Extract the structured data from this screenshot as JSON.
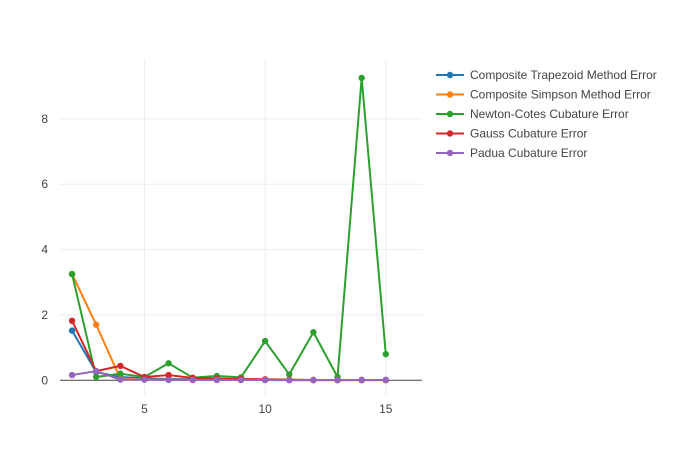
{
  "chart_data": {
    "type": "line",
    "title": "",
    "xlabel": "",
    "ylabel": "",
    "xlim": [
      1.5,
      16.5
    ],
    "ylim": [
      -0.45,
      9.8
    ],
    "x_ticks": [
      5,
      10,
      15
    ],
    "y_ticks": [
      0,
      2,
      4,
      6,
      8
    ],
    "grid": true,
    "legend_position": "top-right",
    "series": [
      {
        "name": "Composite Trapezoid Method Error",
        "color": "#1f77b4",
        "x": [
          2,
          3,
          4,
          5,
          6,
          7,
          8,
          9,
          10,
          11,
          12,
          13,
          14,
          15
        ],
        "y": [
          1.52,
          0.25,
          0.1,
          0.06,
          0.04,
          0.03,
          0.02,
          0.02,
          0.01,
          0.01,
          0.01,
          0.01,
          0.01,
          0.01
        ]
      },
      {
        "name": "Composite Simpson Method Error",
        "color": "#ff7f0e",
        "x": [
          2,
          3,
          4,
          5,
          6,
          7,
          8,
          9,
          10,
          11,
          12,
          13,
          14,
          15
        ],
        "y": [
          3.25,
          1.7,
          0.05,
          0.03,
          0.02,
          0.01,
          0.01,
          0.01,
          0.01,
          0.0,
          0.0,
          0.0,
          0.0,
          0.0
        ]
      },
      {
        "name": "Newton-Cotes Cubature Error",
        "color": "#2ca02c",
        "x": [
          2,
          3,
          4,
          5,
          6,
          7,
          8,
          9,
          10,
          11,
          12,
          13,
          14,
          15
        ],
        "y": [
          3.25,
          0.1,
          0.2,
          0.1,
          0.52,
          0.08,
          0.13,
          0.09,
          1.2,
          0.18,
          1.47,
          0.1,
          9.25,
          0.8
        ]
      },
      {
        "name": "Gauss Cubature Error",
        "color": "#d62728",
        "x": [
          2,
          3,
          4,
          5,
          6,
          7,
          8,
          9,
          10,
          11,
          12,
          13,
          14,
          15
        ],
        "y": [
          1.82,
          0.28,
          0.44,
          0.1,
          0.16,
          0.07,
          0.05,
          0.04,
          0.03,
          0.02,
          0.01,
          0.01,
          0.01,
          0.01
        ]
      },
      {
        "name": "Padua Cubature Error",
        "color": "#9467bd",
        "x": [
          2,
          3,
          4,
          5,
          6,
          7,
          8,
          9,
          10,
          11,
          12,
          13,
          14,
          15
        ],
        "y": [
          0.16,
          0.28,
          0.02,
          0.02,
          0.01,
          0.01,
          0.01,
          0.01,
          0.01,
          0.01,
          0.01,
          0.01,
          0.01,
          0.01
        ]
      }
    ]
  }
}
